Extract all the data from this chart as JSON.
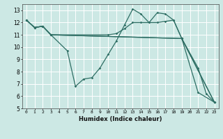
{
  "xlabel": "Humidex (Indice chaleur)",
  "background_color": "#cce8e4",
  "grid_color": "#ffffff",
  "line_color": "#2e6e64",
  "xlim": [
    -0.5,
    23.5
  ],
  "ylim": [
    5,
    13.5
  ],
  "yticks": [
    5,
    6,
    7,
    8,
    9,
    10,
    11,
    12,
    13
  ],
  "xticks": [
    0,
    1,
    2,
    3,
    4,
    5,
    6,
    7,
    8,
    9,
    10,
    11,
    12,
    13,
    14,
    15,
    16,
    17,
    18,
    19,
    20,
    21,
    22,
    23
  ],
  "line1_x": [
    0,
    1,
    2,
    3,
    5,
    6,
    7,
    8,
    9,
    10,
    11,
    12,
    13,
    14,
    15,
    16,
    17,
    18,
    19,
    21,
    22,
    23
  ],
  "line1_y": [
    12.2,
    11.6,
    11.7,
    11.0,
    9.7,
    6.8,
    7.4,
    7.5,
    8.3,
    9.4,
    10.5,
    11.8,
    13.1,
    12.7,
    12.0,
    12.8,
    12.7,
    12.2,
    10.7,
    8.3,
    6.2,
    5.5
  ],
  "line2_x": [
    0,
    1,
    2,
    3,
    10,
    11,
    12,
    13,
    14,
    15,
    16,
    17,
    18,
    19,
    21,
    23
  ],
  "line2_y": [
    12.2,
    11.6,
    11.7,
    11.0,
    11.0,
    11.1,
    11.5,
    12.0,
    12.0,
    12.0,
    12.0,
    12.1,
    12.2,
    10.7,
    6.3,
    5.5
  ],
  "line3_x": [
    0,
    1,
    2,
    3,
    19,
    23
  ],
  "line3_y": [
    12.2,
    11.6,
    11.7,
    11.0,
    10.7,
    5.5
  ],
  "line4_x": [
    0,
    1,
    2,
    3,
    19,
    23
  ],
  "line4_y": [
    12.2,
    11.6,
    11.7,
    11.0,
    10.7,
    5.5
  ]
}
